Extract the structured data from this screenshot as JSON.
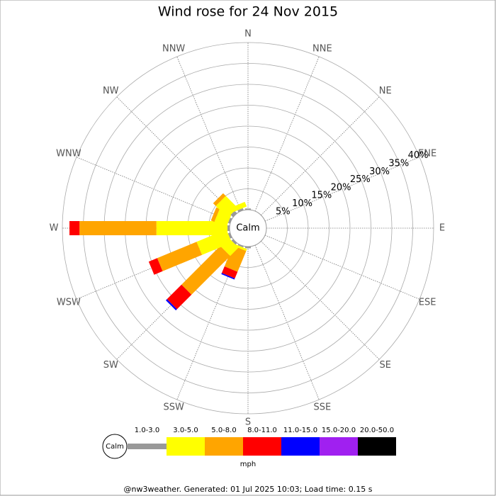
{
  "chart_data": {
    "type": "windrose",
    "title": "Wind rose for 24 Nov 2015",
    "categories": [
      "N",
      "NNE",
      "NE",
      "ENE",
      "E",
      "ESE",
      "SE",
      "SSE",
      "S",
      "SSW",
      "SW",
      "WSW",
      "W",
      "WNW",
      "NW",
      "NNW"
    ],
    "calm_label": "Calm",
    "unit": "mph",
    "rlim": [
      0,
      40
    ],
    "rticks": [
      {
        "value": 5,
        "label": "5%"
      },
      {
        "value": 10,
        "label": "10%"
      },
      {
        "value": 15,
        "label": "15%"
      },
      {
        "value": 20,
        "label": "20%"
      },
      {
        "value": 25,
        "label": "25%"
      },
      {
        "value": 30,
        "label": "30%"
      },
      {
        "value": 35,
        "label": "35%"
      },
      {
        "value": 40,
        "label": "40%"
      }
    ],
    "series": [
      {
        "name": "1.0-3.0",
        "color": "#999999",
        "values": [
          0.3,
          0,
          0,
          0,
          0,
          0,
          0,
          0,
          0.4,
          0.3,
          0.5,
          0.5,
          0.5,
          0.5,
          0.8,
          0.5
        ]
      },
      {
        "name": "3.0-5.0",
        "color": "#ffff00",
        "values": [
          0,
          0,
          0,
          0,
          0,
          0,
          0,
          0,
          0,
          0.5,
          2.8,
          7.7,
          17,
          3.1,
          4,
          1.2
        ]
      },
      {
        "name": "5.0-8.0",
        "color": "#ffa500",
        "values": [
          0,
          0,
          0,
          0,
          0,
          0,
          0,
          0,
          0,
          5.4,
          13.1,
          10.2,
          18.4,
          0.9,
          0.9,
          0
        ]
      },
      {
        "name": "8.0-11.0",
        "color": "#ff0000",
        "values": [
          0,
          0,
          0,
          0,
          0,
          0,
          0,
          0,
          0,
          1.7,
          4.9,
          2.2,
          2.4,
          0,
          0,
          0
        ]
      },
      {
        "name": "11.0-15.0",
        "color": "#0000ff",
        "values": [
          0,
          0,
          0,
          0,
          0,
          0,
          0,
          0,
          0,
          0.3,
          0.4,
          0,
          0,
          0,
          0,
          0
        ]
      },
      {
        "name": "15.0-20.0",
        "color": "#a020f0",
        "values": [
          0,
          0,
          0,
          0,
          0,
          0,
          0,
          0,
          0,
          0,
          0,
          0,
          0,
          0,
          0,
          0
        ]
      },
      {
        "name": "20.0-50.0",
        "color": "#000000",
        "values": [
          0,
          0,
          0,
          0,
          0,
          0,
          0,
          0,
          0,
          0,
          0,
          0,
          0,
          0,
          0,
          0
        ]
      }
    ],
    "footer": "@nw3weather. Generated: 01 Jul 2025 10:03; Load time: 0.15 s"
  }
}
